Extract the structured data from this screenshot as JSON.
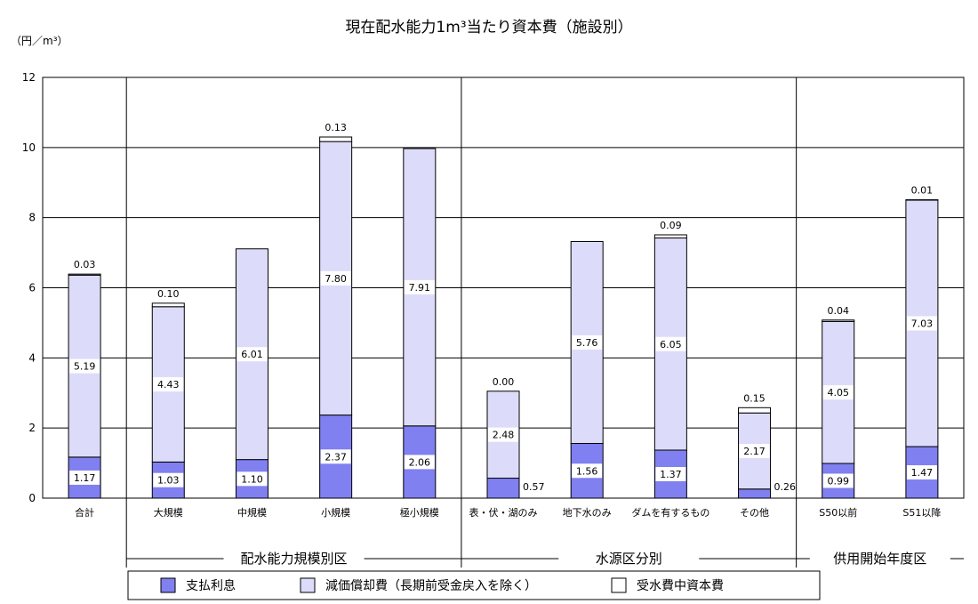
{
  "chart_data": {
    "type": "bar",
    "stacked": true,
    "title": "現在配水能力1m³当たり資本費（施設別）",
    "ylabel": "（円／m³）",
    "ylim": [
      0,
      12
    ],
    "yticks": [
      0,
      2,
      4,
      6,
      8,
      10,
      12
    ],
    "grid": true,
    "legend_position": "bottom",
    "categories": [
      "合計",
      "大規模",
      "中規模",
      "小規模",
      "極小規模",
      "表・伏・湖のみ",
      "地下水のみ",
      "ダムを有するもの",
      "その他",
      "S50以前",
      "S51以降"
    ],
    "groups": [
      {
        "label": "配水能力規模別区",
        "categories": [
          "大規模",
          "中規模",
          "小規模",
          "極小規模"
        ]
      },
      {
        "label": "水源区分別",
        "categories": [
          "表・伏・湖のみ",
          "地下水のみ",
          "ダムを有するもの",
          "その他"
        ]
      },
      {
        "label": "供用開始年度区",
        "categories": [
          "S50以前",
          "S51以降"
        ]
      }
    ],
    "series": [
      {
        "name": "支払利息",
        "color": "#8080f0",
        "values": [
          1.17,
          1.03,
          1.1,
          2.37,
          2.06,
          0.57,
          1.56,
          1.37,
          0.26,
          0.99,
          1.47
        ],
        "labels": [
          "1.17",
          "1.03",
          "1.10",
          "2.37",
          "2.06",
          "0.57",
          "1.56",
          "1.37",
          "0.26",
          "0.99",
          "1.47"
        ]
      },
      {
        "name": "減価償却費（長期前受金戻入を除く）",
        "color": "#dcdcfa",
        "values": [
          5.19,
          4.43,
          6.01,
          7.8,
          7.91,
          2.48,
          5.76,
          6.05,
          2.17,
          4.05,
          7.03
        ],
        "labels": [
          "5.19",
          "4.43",
          "6.01",
          "7.80",
          "7.91",
          "2.48",
          "5.76",
          "6.05",
          "2.17",
          "4.05",
          "7.03"
        ]
      },
      {
        "name": "受水費中資本費",
        "color": "#ffffff",
        "values": [
          0.03,
          0.1,
          0.0,
          0.13,
          0.0,
          0.0,
          0.0,
          0.09,
          0.15,
          0.04,
          0.01
        ],
        "labels": [
          "0.03",
          "0.10",
          "",
          "0.13",
          "",
          "0.00",
          "",
          "0.09",
          "0.15",
          "0.04",
          "0.01"
        ]
      }
    ]
  }
}
